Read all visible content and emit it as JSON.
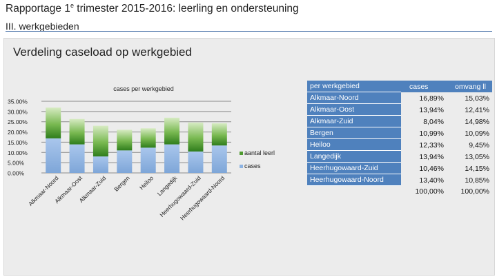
{
  "header": {
    "title_pre": "Rapportage 1",
    "title_sup": "e",
    "title_post": " trimester 2015-2016: leerling en ondersteuning",
    "subtitle": "III. werkgebieden"
  },
  "panel": {
    "title": "Verdeling caseload op werkgebied"
  },
  "table": {
    "headers": [
      "per werkgebied",
      "cases",
      "omvang ll"
    ],
    "rows": [
      {
        "region": "Alkmaar-Noord",
        "cases": "16,89%",
        "omvang": "15,03%"
      },
      {
        "region": "Alkmaar-Oost",
        "cases": "13,94%",
        "omvang": "12,41%"
      },
      {
        "region": "Alkmaar-Zuid",
        "cases": "8,04%",
        "omvang": "14,98%"
      },
      {
        "region": "Bergen",
        "cases": "10,99%",
        "omvang": "10,09%"
      },
      {
        "region": "Heiloo",
        "cases": "12,33%",
        "omvang": "9,45%"
      },
      {
        "region": "Langedijk",
        "cases": "13,94%",
        "omvang": "13,05%"
      },
      {
        "region": "Heerhugowaard-Zuid",
        "cases": "10,46%",
        "omvang": "14,15%"
      },
      {
        "region": "Heerhugowaard-Noord",
        "cases": "13,40%",
        "omvang": "10,85%"
      }
    ],
    "totals": {
      "cases": "100,00%",
      "omvang": "100,00%"
    }
  },
  "chart_data": {
    "type": "bar",
    "stacked": true,
    "title": "cases per werkgebied",
    "categories": [
      "Alkmaar-Noord",
      "Alkmaar-Oost",
      "Alkmaar-Zuid",
      "Bergen",
      "Heiloo",
      "Langedijk",
      "Heerhugowaard-Zuid",
      "Heerhugowaard-Noord"
    ],
    "series": [
      {
        "name": "cases",
        "color": "#8db3e2",
        "values": [
          16.89,
          13.94,
          8.04,
          10.99,
          12.33,
          13.94,
          10.46,
          13.4
        ]
      },
      {
        "name": "aantal leerl",
        "color": "#4e9a2f",
        "values": [
          15.03,
          12.41,
          14.98,
          10.09,
          9.45,
          13.05,
          14.15,
          10.85
        ]
      }
    ],
    "ylim": [
      0,
      35
    ],
    "yticks": [
      "0.00%",
      "5.00%",
      "10.00%",
      "15.00%",
      "20.00%",
      "25.00%",
      "30.00%",
      "35.00%"
    ],
    "grid": true,
    "legend": "right",
    "legend_order": [
      "aantal leerl",
      "cases"
    ]
  }
}
